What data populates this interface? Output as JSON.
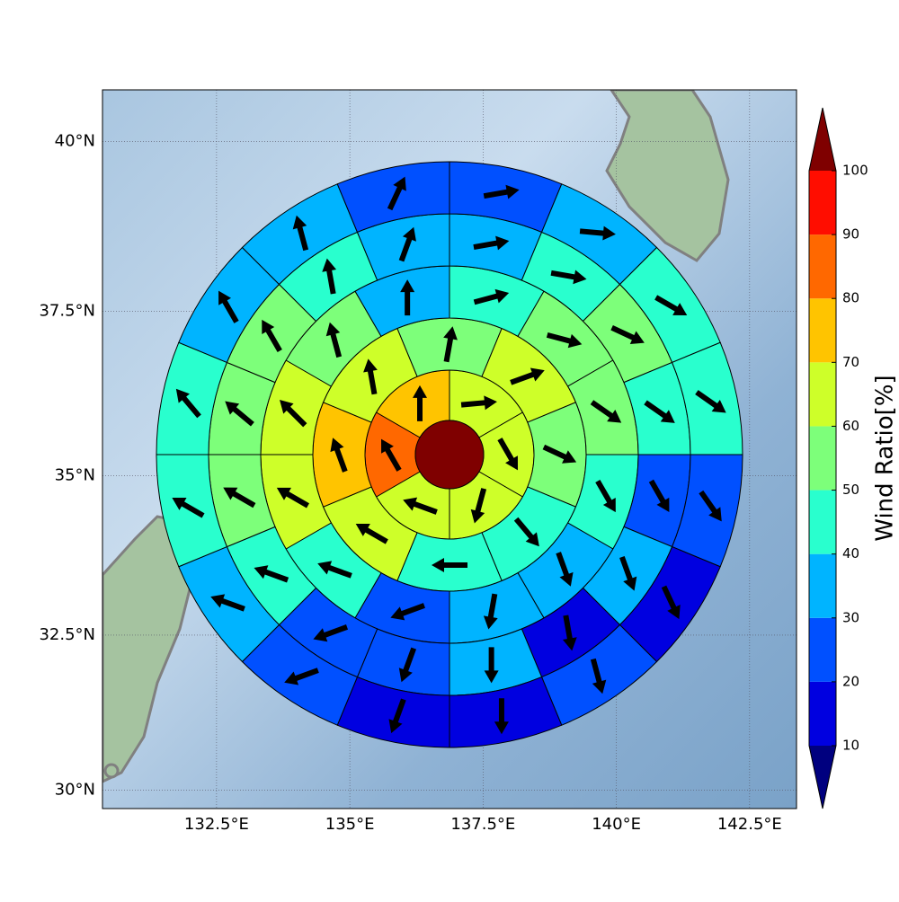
{
  "chart_data": {
    "type": "polar-sector-map",
    "projection": "mercator",
    "grid": true,
    "xlim": [
      130.36,
      143.38
    ],
    "ylim": [
      29.7,
      40.74
    ],
    "xticks": [
      {
        "value": 132.5,
        "label": "132.5°E"
      },
      {
        "value": 135,
        "label": "135°E"
      },
      {
        "value": 137.5,
        "label": "137.5°E"
      },
      {
        "value": 140,
        "label": "140°E"
      },
      {
        "value": 142.5,
        "label": "142.5°E"
      }
    ],
    "yticks": [
      {
        "value": 30,
        "label": "30°N"
      },
      {
        "value": 32.5,
        "label": "32.5°N"
      },
      {
        "value": 35,
        "label": "35°N"
      },
      {
        "value": 37.5,
        "label": "37.5°N"
      },
      {
        "value": 40,
        "label": "40°N"
      }
    ],
    "center_value": 105,
    "rings": [
      {
        "values": [
          65,
          65,
          65,
          65,
          85,
          75
        ],
        "directions": [
          85,
          150,
          195,
          290,
          330,
          0
        ]
      },
      {
        "values": [
          55,
          65,
          55,
          45,
          45,
          65,
          75,
          65
        ],
        "directions": [
          10,
          70,
          115,
          140,
          270,
          300,
          340,
          350
        ]
      },
      {
        "values": [
          45,
          55,
          55,
          45,
          35,
          35,
          25,
          45,
          65,
          65,
          55,
          35
        ],
        "directions": [
          75,
          105,
          125,
          150,
          160,
          190,
          250,
          290,
          300,
          315,
          345,
          0
        ]
      },
      {
        "values": [
          35,
          45,
          55,
          45,
          25,
          35,
          15,
          35,
          25,
          25,
          45,
          55,
          55,
          55,
          45,
          35
        ],
        "directions": [
          80,
          100,
          115,
          125,
          150,
          160,
          170,
          180,
          200,
          250,
          290,
          300,
          310,
          330,
          350,
          20
        ]
      },
      {
        "values": [
          25,
          35,
          45,
          45,
          25,
          15,
          25,
          15,
          15,
          25,
          35,
          45,
          45,
          35,
          35,
          25
        ],
        "directions": [
          80,
          95,
          120,
          125,
          145,
          155,
          165,
          180,
          200,
          250,
          290,
          300,
          320,
          330,
          345,
          25
        ]
      }
    ],
    "colorbar": {
      "label": "Wind Ratio[%]",
      "ticks": [
        10,
        20,
        30,
        40,
        50,
        60,
        70,
        80,
        90,
        100
      ],
      "colors": [
        "#00007f",
        "#0000e0",
        "#0050ff",
        "#00b4ff",
        "#29ffce",
        "#7dff7a",
        "#ceff29",
        "#ffc400",
        "#ff6800",
        "#ff0d00",
        "#7f0000"
      ]
    }
  }
}
